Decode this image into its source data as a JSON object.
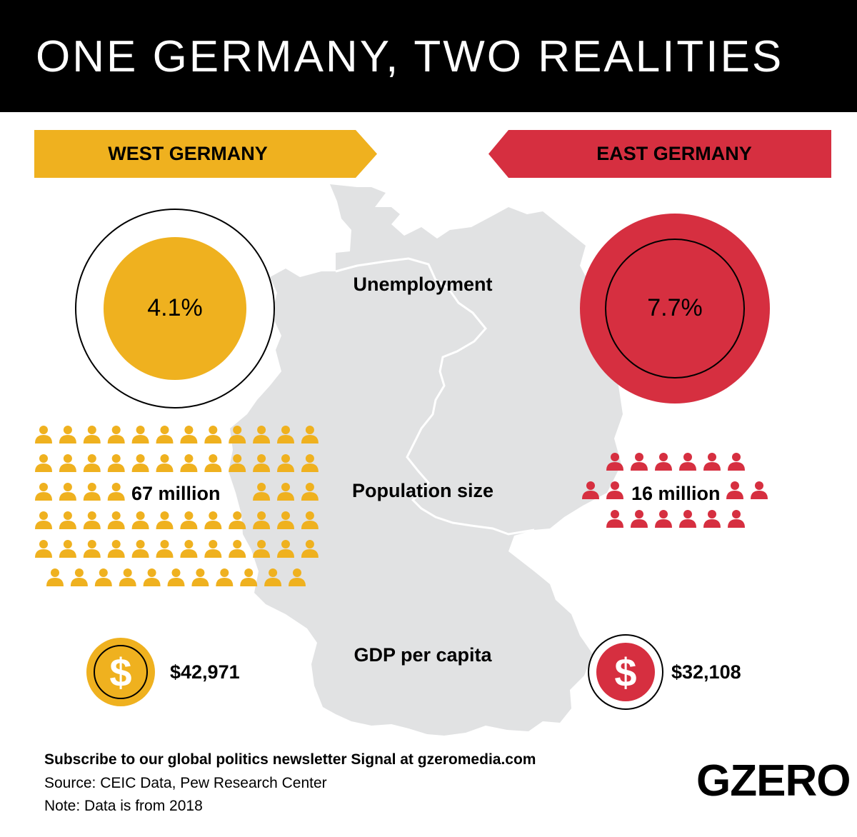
{
  "title": "ONE GERMANY, TWO REALITIES",
  "colors": {
    "west": "#EFB11F",
    "east": "#D62F40",
    "map": "#E1E2E3",
    "header": "#000000"
  },
  "chart_data": {
    "type": "infographic-comparison",
    "title": "ONE GERMANY, TWO REALITIES",
    "regions": [
      "WEST GERMANY",
      "EAST GERMANY"
    ],
    "metrics": [
      {
        "name": "Unemployment",
        "west": 4.1,
        "east": 7.7,
        "west_label": "4.1%",
        "east_label": "7.7%",
        "unit": "%"
      },
      {
        "name": "Population size",
        "west": 67,
        "east": 16,
        "west_label": "67 million",
        "east_label": "16 million",
        "unit": "million"
      },
      {
        "name": "GDP per capita",
        "west": 42971,
        "east": 32108,
        "west_label": "$42,971",
        "east_label": "$32,108",
        "unit": "USD"
      }
    ]
  },
  "icons": {
    "person": "person-icon",
    "dollar": "dollar-coin-icon",
    "map": "germany-map"
  },
  "coin_symbol": "$",
  "footer": {
    "subscribe": "Subscribe to our global politics newsletter Signal at gzeromedia.com",
    "source": "Source: CEIC Data, Pew Research Center",
    "note": "Note: Data is from 2018"
  },
  "logo": "GZERO"
}
